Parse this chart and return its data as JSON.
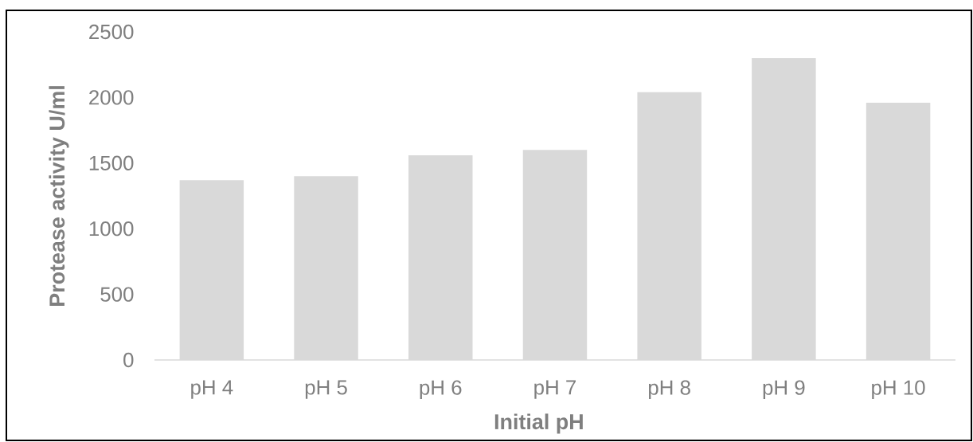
{
  "chart_data": {
    "type": "bar",
    "xlabel": "Initial pH",
    "ylabel": "Protease activity U/ml",
    "categories": [
      "pH 4",
      "pH 5",
      "pH 6",
      "pH 7",
      "pH 8",
      "pH 9",
      "pH 10"
    ],
    "values": [
      1370,
      1400,
      1560,
      1600,
      2040,
      2300,
      1960
    ],
    "color": "#d9d9d9",
    "ylim": [
      0,
      2500
    ],
    "yticks": [
      0,
      500,
      1000,
      1500,
      2000,
      2500
    ]
  }
}
